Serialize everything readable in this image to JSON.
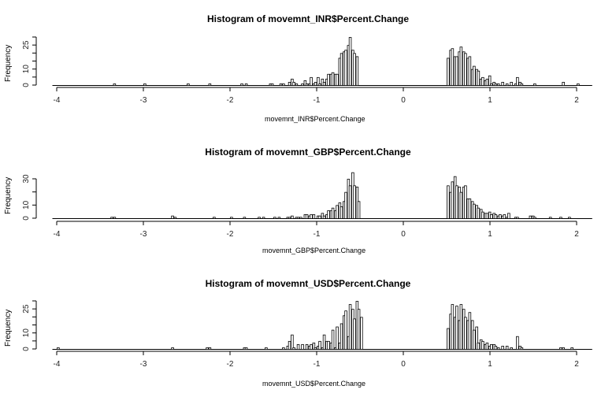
{
  "chart_data": [
    {
      "type": "bar",
      "subtype": "histogram",
      "title": "Histogram of movemnt_INR$Percent.Change",
      "xlabel": "movemnt_INR$Percent.Change",
      "ylabel": "Frequency",
      "xlim": [
        -4,
        2.2
      ],
      "ylim": [
        0,
        30
      ],
      "x_ticks": [
        -4,
        -3,
        -2,
        -1,
        0,
        1,
        2
      ],
      "y_ticks": [
        0,
        5,
        10,
        15,
        20,
        25,
        30
      ],
      "y_tick_labels": [
        "0",
        "10",
        "25"
      ],
      "bin_width": 0.025,
      "bins": [
        [
          -3.35,
          1
        ],
        [
          -3.0,
          1
        ],
        [
          -2.5,
          1
        ],
        [
          -2.25,
          1
        ],
        [
          -1.88,
          1
        ],
        [
          -1.83,
          1
        ],
        [
          -1.55,
          1
        ],
        [
          -1.53,
          1
        ],
        [
          -1.43,
          1
        ],
        [
          -1.4,
          1
        ],
        [
          -1.33,
          2
        ],
        [
          -1.3,
          4
        ],
        [
          -1.28,
          2
        ],
        [
          -1.25,
          1
        ],
        [
          -1.18,
          1
        ],
        [
          -1.15,
          3
        ],
        [
          -1.13,
          1
        ],
        [
          -1.1,
          1
        ],
        [
          -1.08,
          5
        ],
        [
          -1.05,
          1
        ],
        [
          -1.03,
          2
        ],
        [
          -1.0,
          5
        ],
        [
          -0.98,
          1
        ],
        [
          -0.95,
          4
        ],
        [
          -0.93,
          2
        ],
        [
          -0.9,
          4
        ],
        [
          -0.88,
          7
        ],
        [
          -0.85,
          7
        ],
        [
          -0.83,
          8
        ],
        [
          -0.8,
          7
        ],
        [
          -0.78,
          7
        ],
        [
          -0.75,
          17
        ],
        [
          -0.73,
          20
        ],
        [
          -0.7,
          21
        ],
        [
          -0.68,
          22
        ],
        [
          -0.65,
          25
        ],
        [
          -0.63,
          30
        ],
        [
          -0.6,
          22
        ],
        [
          -0.58,
          20
        ],
        [
          -0.55,
          18
        ],
        [
          0.5,
          17
        ],
        [
          0.53,
          22
        ],
        [
          0.55,
          23
        ],
        [
          0.58,
          18
        ],
        [
          0.6,
          18
        ],
        [
          0.63,
          21
        ],
        [
          0.65,
          24
        ],
        [
          0.68,
          21
        ],
        [
          0.7,
          20
        ],
        [
          0.73,
          17
        ],
        [
          0.75,
          18
        ],
        [
          0.78,
          10
        ],
        [
          0.8,
          12
        ],
        [
          0.83,
          10
        ],
        [
          0.85,
          9
        ],
        [
          0.88,
          4
        ],
        [
          0.9,
          5
        ],
        [
          0.93,
          3
        ],
        [
          0.95,
          4
        ],
        [
          0.98,
          6
        ],
        [
          1.0,
          1
        ],
        [
          1.03,
          2
        ],
        [
          1.05,
          1
        ],
        [
          1.08,
          1
        ],
        [
          1.13,
          2
        ],
        [
          1.18,
          1
        ],
        [
          1.23,
          2
        ],
        [
          1.28,
          1
        ],
        [
          1.3,
          5
        ],
        [
          1.33,
          2
        ],
        [
          1.35,
          1
        ],
        [
          1.5,
          1
        ],
        [
          1.83,
          2
        ],
        [
          2.0,
          1
        ]
      ]
    },
    {
      "type": "bar",
      "subtype": "histogram",
      "title": "Histogram of movemnt_GBP$Percent.Change",
      "xlabel": "movemnt_GBP$Percent.Change",
      "ylabel": "Frequency",
      "xlim": [
        -4,
        2.2
      ],
      "ylim": [
        0,
        35
      ],
      "x_ticks": [
        -4,
        -3,
        -2,
        -1,
        0,
        1,
        2
      ],
      "y_ticks": [
        0,
        10,
        20,
        30
      ],
      "y_tick_labels": [
        "0",
        "10",
        "30"
      ],
      "bin_width": 0.025,
      "bins": [
        [
          -3.38,
          1
        ],
        [
          -3.35,
          1
        ],
        [
          -2.68,
          2
        ],
        [
          -2.65,
          1
        ],
        [
          -2.2,
          1
        ],
        [
          -2.0,
          1
        ],
        [
          -1.85,
          1
        ],
        [
          -1.68,
          1
        ],
        [
          -1.63,
          1
        ],
        [
          -1.5,
          1
        ],
        [
          -1.45,
          1
        ],
        [
          -1.35,
          1
        ],
        [
          -1.33,
          1
        ],
        [
          -1.3,
          2
        ],
        [
          -1.25,
          1
        ],
        [
          -1.23,
          1
        ],
        [
          -1.2,
          1
        ],
        [
          -1.15,
          3
        ],
        [
          -1.13,
          3
        ],
        [
          -1.1,
          2
        ],
        [
          -1.08,
          3
        ],
        [
          -1.05,
          3
        ],
        [
          -1.0,
          2
        ],
        [
          -0.98,
          2
        ],
        [
          -0.95,
          4
        ],
        [
          -0.93,
          2
        ],
        [
          -0.9,
          3
        ],
        [
          -0.88,
          6
        ],
        [
          -0.85,
          6
        ],
        [
          -0.83,
          8
        ],
        [
          -0.8,
          6
        ],
        [
          -0.78,
          10
        ],
        [
          -0.75,
          12
        ],
        [
          -0.73,
          9
        ],
        [
          -0.7,
          13
        ],
        [
          -0.68,
          20
        ],
        [
          -0.65,
          30
        ],
        [
          -0.63,
          25
        ],
        [
          -0.6,
          35
        ],
        [
          -0.58,
          25
        ],
        [
          -0.55,
          24
        ],
        [
          -0.53,
          13
        ],
        [
          0.5,
          25
        ],
        [
          0.53,
          20
        ],
        [
          0.55,
          28
        ],
        [
          0.58,
          32
        ],
        [
          0.6,
          25
        ],
        [
          0.63,
          24
        ],
        [
          0.65,
          20
        ],
        [
          0.68,
          24
        ],
        [
          0.7,
          25
        ],
        [
          0.73,
          15
        ],
        [
          0.75,
          15
        ],
        [
          0.78,
          13
        ],
        [
          0.8,
          11
        ],
        [
          0.83,
          10
        ],
        [
          0.85,
          8
        ],
        [
          0.88,
          7
        ],
        [
          0.9,
          5
        ],
        [
          0.93,
          4
        ],
        [
          0.95,
          4
        ],
        [
          0.98,
          5
        ],
        [
          1.0,
          3
        ],
        [
          1.03,
          4
        ],
        [
          1.05,
          3
        ],
        [
          1.08,
          2
        ],
        [
          1.1,
          3
        ],
        [
          1.13,
          2
        ],
        [
          1.15,
          3
        ],
        [
          1.18,
          1
        ],
        [
          1.2,
          4
        ],
        [
          1.28,
          1
        ],
        [
          1.3,
          1
        ],
        [
          1.45,
          2
        ],
        [
          1.48,
          2
        ],
        [
          1.5,
          1
        ],
        [
          1.68,
          1
        ],
        [
          1.8,
          1
        ],
        [
          1.9,
          1
        ]
      ]
    },
    {
      "type": "bar",
      "subtype": "histogram",
      "title": "Histogram of movemnt_USD$Percent.Change",
      "xlabel": "movemnt_USD$Percent.Change",
      "ylabel": "Frequency",
      "xlim": [
        -4,
        2.2
      ],
      "ylim": [
        0,
        30
      ],
      "x_ticks": [
        -4,
        -3,
        -2,
        -1,
        0,
        1,
        2
      ],
      "y_ticks": [
        0,
        5,
        10,
        15,
        20,
        25,
        30
      ],
      "y_tick_labels": [
        "0",
        "10",
        "25"
      ],
      "bin_width": 0.025,
      "bins": [
        [
          -4.0,
          1
        ],
        [
          -2.68,
          1
        ],
        [
          -2.28,
          1
        ],
        [
          -2.25,
          1
        ],
        [
          -1.85,
          1
        ],
        [
          -1.83,
          1
        ],
        [
          -1.6,
          1
        ],
        [
          -1.4,
          1
        ],
        [
          -1.35,
          2
        ],
        [
          -1.33,
          5
        ],
        [
          -1.3,
          9
        ],
        [
          -1.28,
          1
        ],
        [
          -1.23,
          3
        ],
        [
          -1.18,
          3
        ],
        [
          -1.13,
          3
        ],
        [
          -1.1,
          2
        ],
        [
          -1.08,
          3
        ],
        [
          -1.05,
          4
        ],
        [
          -1.03,
          1
        ],
        [
          -1.0,
          2
        ],
        [
          -0.98,
          5
        ],
        [
          -0.95,
          1
        ],
        [
          -0.93,
          9
        ],
        [
          -0.9,
          5
        ],
        [
          -0.88,
          5
        ],
        [
          -0.85,
          4
        ],
        [
          -0.83,
          12
        ],
        [
          -0.8,
          1
        ],
        [
          -0.78,
          14
        ],
        [
          -0.75,
          4
        ],
        [
          -0.73,
          16
        ],
        [
          -0.7,
          21
        ],
        [
          -0.68,
          24
        ],
        [
          -0.65,
          8
        ],
        [
          -0.63,
          28
        ],
        [
          -0.6,
          25
        ],
        [
          -0.58,
          19
        ],
        [
          -0.55,
          30
        ],
        [
          -0.53,
          25
        ],
        [
          -0.5,
          20
        ],
        [
          0.5,
          13
        ],
        [
          0.53,
          22
        ],
        [
          0.55,
          28
        ],
        [
          0.58,
          20
        ],
        [
          0.6,
          27
        ],
        [
          0.63,
          18
        ],
        [
          0.65,
          28
        ],
        [
          0.68,
          25
        ],
        [
          0.7,
          20
        ],
        [
          0.73,
          18
        ],
        [
          0.75,
          23
        ],
        [
          0.78,
          18
        ],
        [
          0.8,
          12
        ],
        [
          0.83,
          14
        ],
        [
          0.85,
          4
        ],
        [
          0.88,
          6
        ],
        [
          0.9,
          5
        ],
        [
          0.93,
          3
        ],
        [
          0.95,
          4
        ],
        [
          0.98,
          2
        ],
        [
          1.0,
          3
        ],
        [
          1.03,
          3
        ],
        [
          1.05,
          2
        ],
        [
          1.08,
          1
        ],
        [
          1.13,
          2
        ],
        [
          1.18,
          2
        ],
        [
          1.23,
          1
        ],
        [
          1.3,
          8
        ],
        [
          1.33,
          2
        ],
        [
          1.35,
          1
        ],
        [
          1.8,
          1
        ],
        [
          1.83,
          1
        ],
        [
          1.93,
          1
        ]
      ]
    }
  ],
  "panels": [
    {
      "title": "Histogram of movemnt_INR$Percent.Change",
      "xlabel": "movemnt_INR$Percent.Change",
      "ylabel": "Frequency"
    },
    {
      "title": "Histogram of movemnt_GBP$Percent.Change",
      "xlabel": "movemnt_GBP$Percent.Change",
      "ylabel": "Frequency"
    },
    {
      "title": "Histogram of movemnt_USD$Percent.Change",
      "xlabel": "movemnt_USD$Percent.Change",
      "ylabel": "Frequency"
    }
  ],
  "style": {
    "bar_fill": "#ffffff",
    "bar_stroke": "#000000",
    "axis_color": "#000000",
    "background": "#ffffff"
  }
}
